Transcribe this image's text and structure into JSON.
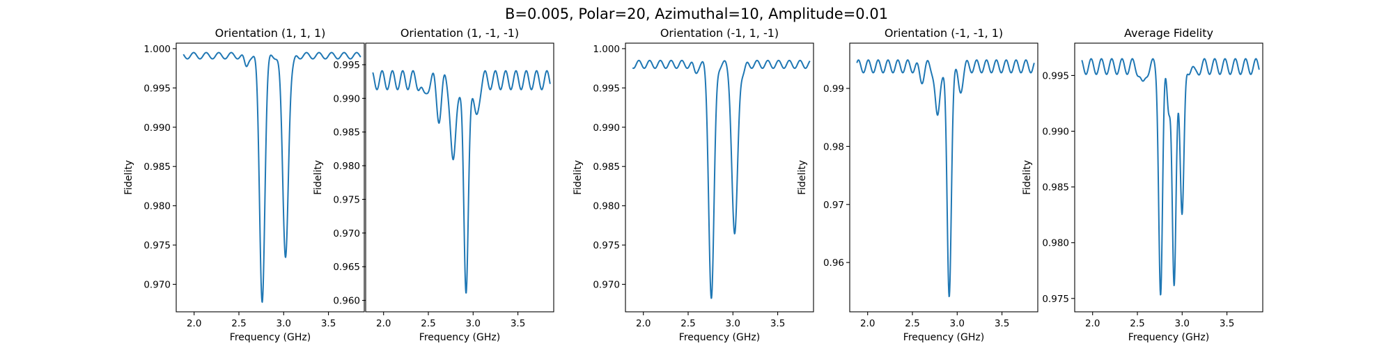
{
  "figure": {
    "title": "B=0.005, Polar=20, Azimuthal=10, Amplitude=0.01",
    "line_color": "#1f77b4"
  },
  "chart_data": [
    {
      "type": "line",
      "title": "Orientation (1, 1, 1)",
      "xlabel": "Frequency (GHz)",
      "ylabel": "Fidelity",
      "xlim": [
        1.8,
        3.9
      ],
      "ylim": [
        0.9665,
        1.0007
      ],
      "xticks": [
        2.0,
        2.5,
        3.0,
        3.5
      ],
      "xtick_labels": [
        "2.0",
        "2.5",
        "3.0",
        "3.5"
      ],
      "yticks": [
        0.97,
        0.975,
        0.98,
        0.985,
        0.99,
        0.995,
        1.0
      ],
      "ytick_labels": [
        "0.970",
        "0.975",
        "0.980",
        "0.985",
        "0.990",
        "0.995",
        "1.000"
      ],
      "grid": false,
      "series": [
        {
          "baseline": 0.9991,
          "ripple_amp": 0.0004,
          "ripple_period": 0.14,
          "dips": [
            [
              2.58,
              0.0015,
              0.03
            ],
            [
              2.76,
              0.031,
              0.042
            ],
            [
              3.02,
              0.0255,
              0.045
            ],
            [
              3.1,
              0.001,
              0.03
            ]
          ],
          "points": [
            [
              1.9,
              0.999
            ],
            [
              2.0,
              0.9991
            ],
            [
              2.1,
              0.999
            ],
            [
              2.2,
              0.9991
            ],
            [
              2.3,
              0.999
            ],
            [
              2.4,
              0.9991
            ],
            [
              2.5,
              0.999
            ],
            [
              2.6,
              0.9985
            ],
            [
              2.7,
              0.99
            ],
            [
              2.76,
              0.9682
            ],
            [
              2.86,
              0.9968
            ],
            [
              3.02,
              0.9736
            ],
            [
              3.12,
              0.999
            ],
            [
              3.2,
              0.998
            ],
            [
              3.5,
              0.999
            ],
            [
              3.85,
              0.999
            ]
          ]
        }
      ]
    },
    {
      "type": "line",
      "title": "Orientation (1, -1, -1)",
      "xlabel": "Frequency (GHz)",
      "ylabel": "Fidelity",
      "xlim": [
        1.8,
        3.9
      ],
      "ylim": [
        0.9583,
        0.9982
      ],
      "xticks": [
        2.0,
        2.5,
        3.0,
        3.5
      ],
      "xtick_labels": [
        "2.0",
        "2.5",
        "3.0",
        "3.5"
      ],
      "yticks": [
        0.96,
        0.965,
        0.97,
        0.975,
        0.98,
        0.985,
        0.99,
        0.995
      ],
      "ytick_labels": [
        "0.960",
        "0.965",
        "0.970",
        "0.975",
        "0.980",
        "0.985",
        "0.990",
        "0.995"
      ],
      "grid": false,
      "series": [
        {
          "baseline": 0.9927,
          "ripple_amp": 0.0014,
          "ripple_period": 0.115,
          "dips": [
            [
              2.45,
              0.003,
              0.035
            ],
            [
              2.62,
              0.005,
              0.04
            ],
            [
              2.78,
              0.013,
              0.04
            ],
            [
              2.92,
              0.0325,
              0.035
            ],
            [
              3.03,
              0.006,
              0.04
            ]
          ],
          "points": [
            [
              1.9,
              0.9925
            ],
            [
              2.5,
              0.9925
            ],
            [
              2.7,
              0.9953
            ],
            [
              2.78,
              0.9788
            ],
            [
              2.84,
              0.984
            ],
            [
              2.92,
              0.9603
            ],
            [
              3.0,
              0.9875
            ],
            [
              3.03,
              0.986
            ],
            [
              3.11,
              0.9964
            ],
            [
              3.5,
              0.9925
            ],
            [
              3.85,
              0.9937
            ]
          ]
        }
      ]
    },
    {
      "type": "line",
      "title": "Orientation (-1, 1, -1)",
      "xlabel": "Frequency (GHz)",
      "ylabel": "Fidelity",
      "xlim": [
        1.8,
        3.9
      ],
      "ylim": [
        0.9665,
        1.0007
      ],
      "xticks": [
        2.0,
        2.5,
        3.0,
        3.5
      ],
      "xtick_labels": [
        "2.0",
        "2.5",
        "3.0",
        "3.5"
      ],
      "yticks": [
        0.97,
        0.975,
        0.98,
        0.985,
        0.99,
        0.995,
        1.0
      ],
      "ytick_labels": [
        "0.970",
        "0.975",
        "0.980",
        "0.985",
        "0.990",
        "0.995",
        "1.000"
      ],
      "grid": false,
      "series": [
        {
          "baseline": 0.998,
          "ripple_amp": 0.0005,
          "ripple_period": 0.12,
          "dips": [
            [
              2.58,
              0.001,
              0.03
            ],
            [
              2.76,
              0.0298,
              0.042
            ],
            [
              3.02,
              0.022,
              0.045
            ],
            [
              3.12,
              0.001,
              0.03
            ]
          ],
          "points": [
            [
              1.9,
              0.998
            ],
            [
              2.6,
              0.9968
            ],
            [
              2.7,
              0.998
            ],
            [
              2.76,
              0.9682
            ],
            [
              2.86,
              0.9932
            ],
            [
              3.02,
              0.976
            ],
            [
              3.12,
              0.9987
            ],
            [
              3.2,
              0.997
            ],
            [
              3.85,
              0.998
            ]
          ]
        }
      ]
    },
    {
      "type": "line",
      "title": "Orientation (-1, -1, 1)",
      "xlabel": "Frequency (GHz)",
      "ylabel": "Fidelity",
      "xlim": [
        1.8,
        3.9
      ],
      "ylim": [
        0.9515,
        0.9978
      ],
      "xticks": [
        2.0,
        2.5,
        3.0,
        3.5
      ],
      "xtick_labels": [
        "2.0",
        "2.5",
        "3.0",
        "3.5"
      ],
      "yticks": [
        0.96,
        0.97,
        0.98,
        0.99
      ],
      "ytick_labels": [
        "0.96",
        "0.97",
        "0.98",
        "0.99"
      ],
      "grid": false,
      "series": [
        {
          "baseline": 0.9938,
          "ripple_amp": 0.0011,
          "ripple_period": 0.11,
          "dips": [
            [
              2.6,
              0.002,
              0.04
            ],
            [
              2.78,
              0.0095,
              0.035
            ],
            [
              2.91,
              0.04,
              0.033
            ],
            [
              3.03,
              0.004,
              0.04
            ]
          ],
          "points": [
            [
              1.9,
              0.9935
            ],
            [
              2.5,
              0.994
            ],
            [
              2.7,
              0.9955
            ],
            [
              2.79,
              0.9835
            ],
            [
              2.84,
              0.986
            ],
            [
              2.91,
              0.9535
            ],
            [
              3.0,
              0.9897
            ],
            [
              3.03,
              0.9893
            ],
            [
              3.11,
              0.9962
            ],
            [
              3.5,
              0.994
            ],
            [
              3.85,
              0.9945
            ]
          ]
        }
      ]
    },
    {
      "type": "line",
      "title": "Average Fidelity",
      "xlabel": "Frequency (GHz)",
      "ylabel": "Fidelity",
      "xlim": [
        1.8,
        3.9
      ],
      "ylim": [
        0.9738,
        0.9979
      ],
      "xticks": [
        2.0,
        2.5,
        3.0,
        3.5
      ],
      "xtick_labels": [
        "2.0",
        "2.5",
        "3.0",
        "3.5"
      ],
      "yticks": [
        0.975,
        0.98,
        0.985,
        0.99,
        0.995
      ],
      "ytick_labels": [
        "0.975",
        "0.980",
        "0.985",
        "0.990",
        "0.995"
      ],
      "grid": false,
      "series": [
        {
          "baseline": 0.9958,
          "ripple_amp": 0.0007,
          "ripple_period": 0.115,
          "dips": [
            [
              2.56,
              0.002,
              0.035
            ],
            [
              2.76,
              0.0205,
              0.03
            ],
            [
              2.85,
              0.0032,
              0.025
            ],
            [
              2.91,
              0.0203,
              0.03
            ],
            [
              3.0,
              0.0136,
              0.03
            ],
            [
              3.14,
              0.0008,
              0.03
            ]
          ],
          "points": [
            [
              1.9,
              0.9955
            ],
            [
              2.5,
              0.996
            ],
            [
              2.62,
              0.9965
            ],
            [
              2.76,
              0.9748
            ],
            [
              2.82,
              0.9832
            ],
            [
              2.91,
              0.9755
            ],
            [
              2.96,
              0.983
            ],
            [
              3.0,
              0.9813
            ],
            [
              3.1,
              0.9973
            ],
            [
              3.5,
              0.996
            ],
            [
              3.85,
              0.9963
            ]
          ]
        }
      ]
    }
  ]
}
